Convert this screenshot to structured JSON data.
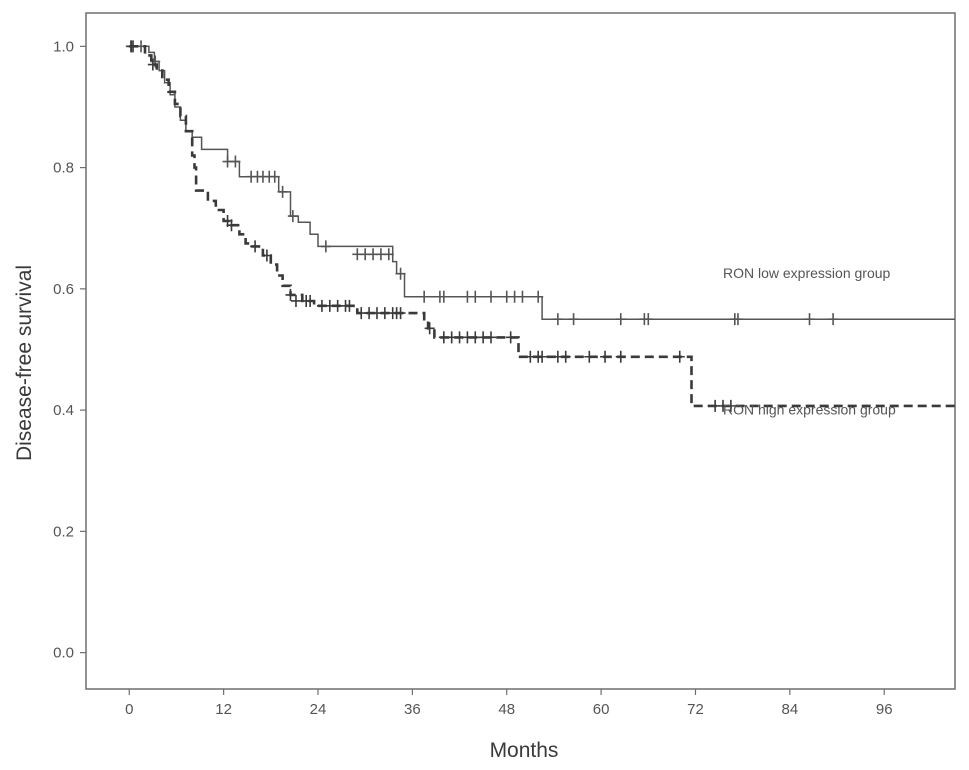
{
  "chart_data": {
    "type": "line",
    "title": "",
    "xlabel": "Months",
    "ylabel": "Disease-free survival",
    "xlim": [
      -5.5,
      105
    ],
    "ylim": [
      -0.06,
      1.055
    ],
    "x_ticks": [
      0,
      12,
      24,
      36,
      48,
      60,
      72,
      84,
      96
    ],
    "x_tick_labels": [
      "0",
      "12",
      "24",
      "36",
      "48",
      "60",
      "72",
      "84",
      "96"
    ],
    "y_ticks": [
      0.0,
      0.2,
      0.4,
      0.6,
      0.8,
      1.0
    ],
    "y_tick_labels": [
      "0.0",
      "0.2",
      "0.4",
      "0.6",
      "0.8",
      "1.0"
    ],
    "grid": false,
    "legend": "none",
    "annotations": [
      {
        "text": "RON low expression group",
        "x": 75.5,
        "y": 0.618
      },
      {
        "text": "RON high expression group",
        "x": 75.5,
        "y": 0.393
      }
    ],
    "series": [
      {
        "style": "solid",
        "color": "#555555",
        "steps": [
          [
            0,
            1.0
          ],
          [
            2.5,
            0.99
          ],
          [
            3.2,
            0.975
          ],
          [
            3.8,
            0.96
          ],
          [
            4.5,
            0.94
          ],
          [
            5.2,
            0.92
          ],
          [
            5.8,
            0.9
          ],
          [
            6.5,
            0.878
          ],
          [
            7.2,
            0.86
          ],
          [
            8.0,
            0.85
          ],
          [
            9.2,
            0.83
          ],
          [
            12.5,
            0.81
          ],
          [
            14.0,
            0.785
          ],
          [
            19.0,
            0.76
          ],
          [
            20.5,
            0.72
          ],
          [
            21.5,
            0.71
          ],
          [
            23.0,
            0.69
          ],
          [
            24.0,
            0.67
          ],
          [
            33.5,
            0.645
          ],
          [
            34.0,
            0.625
          ],
          [
            35.0,
            0.587
          ],
          [
            52.5,
            0.55
          ],
          [
            105,
            0.55
          ]
        ],
        "censors": [
          [
            0.2,
            1.0
          ],
          [
            0.5,
            1.0
          ],
          [
            1.5,
            1.0
          ],
          [
            3.3,
            0.975
          ],
          [
            12.5,
            0.81
          ],
          [
            13.5,
            0.81
          ],
          [
            15.5,
            0.785
          ],
          [
            16.3,
            0.785
          ],
          [
            17.0,
            0.785
          ],
          [
            17.8,
            0.785
          ],
          [
            18.5,
            0.785
          ],
          [
            19.5,
            0.76
          ],
          [
            20.8,
            0.72
          ],
          [
            25.0,
            0.67
          ],
          [
            29.0,
            0.657
          ],
          [
            30.0,
            0.657
          ],
          [
            31.0,
            0.657
          ],
          [
            32.0,
            0.657
          ],
          [
            33.0,
            0.657
          ],
          [
            34.5,
            0.625
          ],
          [
            37.5,
            0.587
          ],
          [
            39.5,
            0.587
          ],
          [
            40.0,
            0.587
          ],
          [
            43.0,
            0.587
          ],
          [
            44.0,
            0.587
          ],
          [
            46.0,
            0.587
          ],
          [
            48.0,
            0.587
          ],
          [
            49.0,
            0.587
          ],
          [
            50.0,
            0.587
          ],
          [
            52.0,
            0.587
          ],
          [
            54.5,
            0.55
          ],
          [
            56.5,
            0.55
          ],
          [
            62.5,
            0.55
          ],
          [
            65.5,
            0.55
          ],
          [
            66.0,
            0.55
          ],
          [
            77.0,
            0.55
          ],
          [
            77.4,
            0.55
          ],
          [
            86.5,
            0.55
          ],
          [
            89.5,
            0.55
          ]
        ]
      },
      {
        "style": "dashed",
        "color": "#3a3a3a",
        "steps": [
          [
            0,
            1.0
          ],
          [
            2.0,
            0.985
          ],
          [
            2.8,
            0.97
          ],
          [
            3.5,
            0.96
          ],
          [
            4.2,
            0.945
          ],
          [
            5.0,
            0.925
          ],
          [
            5.8,
            0.905
          ],
          [
            6.5,
            0.885
          ],
          [
            7.2,
            0.86
          ],
          [
            8.0,
            0.82
          ],
          [
            8.3,
            0.8
          ],
          [
            8.5,
            0.762
          ],
          [
            10.0,
            0.745
          ],
          [
            11.0,
            0.73
          ],
          [
            12.0,
            0.712
          ],
          [
            13.0,
            0.705
          ],
          [
            14.0,
            0.69
          ],
          [
            14.8,
            0.675
          ],
          [
            15.5,
            0.67
          ],
          [
            17.0,
            0.655
          ],
          [
            18.0,
            0.64
          ],
          [
            18.8,
            0.622
          ],
          [
            19.5,
            0.605
          ],
          [
            20.5,
            0.59
          ],
          [
            22.0,
            0.58
          ],
          [
            23.5,
            0.572
          ],
          [
            29.0,
            0.56
          ],
          [
            36.0,
            0.56
          ],
          [
            37.5,
            0.55
          ],
          [
            38.0,
            0.535
          ],
          [
            38.8,
            0.52
          ],
          [
            49.5,
            0.488
          ],
          [
            71.5,
            0.407
          ],
          [
            105,
            0.407
          ]
        ],
        "censors": [
          [
            0.3,
            1.0
          ],
          [
            3.0,
            0.97
          ],
          [
            12.5,
            0.712
          ],
          [
            13.0,
            0.705
          ],
          [
            16.0,
            0.67
          ],
          [
            17.5,
            0.655
          ],
          [
            20.5,
            0.59
          ],
          [
            21.2,
            0.58
          ],
          [
            22.5,
            0.58
          ],
          [
            23.0,
            0.58
          ],
          [
            24.5,
            0.572
          ],
          [
            25.5,
            0.572
          ],
          [
            26.5,
            0.572
          ],
          [
            27.5,
            0.572
          ],
          [
            28.0,
            0.572
          ],
          [
            29.5,
            0.56
          ],
          [
            30.5,
            0.56
          ],
          [
            31.5,
            0.56
          ],
          [
            32.5,
            0.56
          ],
          [
            33.5,
            0.56
          ],
          [
            34.0,
            0.56
          ],
          [
            34.5,
            0.56
          ],
          [
            38.2,
            0.535
          ],
          [
            40.0,
            0.52
          ],
          [
            41.0,
            0.52
          ],
          [
            42.0,
            0.52
          ],
          [
            43.0,
            0.52
          ],
          [
            44.0,
            0.52
          ],
          [
            45.0,
            0.52
          ],
          [
            46.0,
            0.52
          ],
          [
            48.5,
            0.52
          ],
          [
            51.0,
            0.488
          ],
          [
            52.0,
            0.488
          ],
          [
            52.5,
            0.488
          ],
          [
            54.5,
            0.488
          ],
          [
            55.5,
            0.488
          ],
          [
            58.5,
            0.488
          ],
          [
            60.5,
            0.488
          ],
          [
            62.5,
            0.488
          ],
          [
            70.0,
            0.488
          ],
          [
            74.5,
            0.407
          ],
          [
            75.5,
            0.407
          ],
          [
            76.5,
            0.407
          ]
        ]
      }
    ]
  }
}
